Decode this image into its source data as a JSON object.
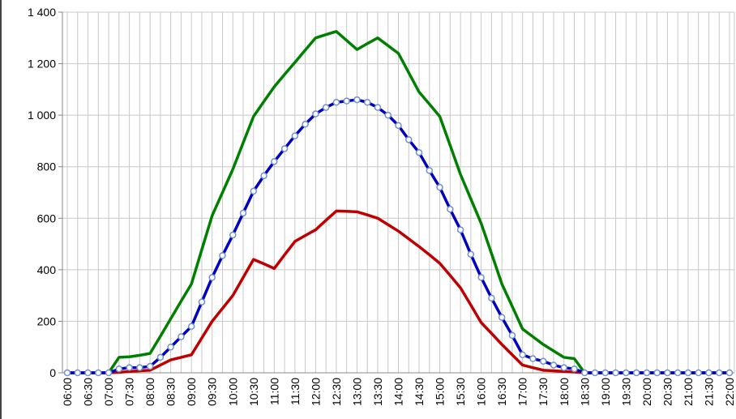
{
  "chart_data": {
    "type": "line",
    "categories": [
      "06:00",
      null,
      "06:30",
      null,
      "07:00",
      null,
      "07:30",
      null,
      "08:00",
      null,
      "08:30",
      null,
      "09:00",
      null,
      "09:30",
      null,
      "10:00",
      null,
      "10:30",
      null,
      "11:00",
      null,
      "11:30",
      null,
      "12:00",
      null,
      "12:30",
      null,
      "13:00",
      null,
      "13:30",
      null,
      "14:00",
      null,
      "14:30",
      null,
      "15:00",
      null,
      "15:30",
      null,
      "16:00",
      null,
      "16:30",
      null,
      "17:00",
      null,
      "17:30",
      null,
      "18:00",
      null,
      "18:30",
      null,
      "19:00",
      null,
      "19:30",
      null,
      "20:00",
      null,
      "20:30",
      null,
      "21:00",
      null,
      "21:30",
      null,
      "22:00"
    ],
    "series": [
      {
        "color": "#008000",
        "values": [
          0,
          0,
          0,
          0,
          0,
          60,
          62,
          68,
          75,
          142,
          210,
          278,
          345,
          478,
          610,
          700,
          790,
          893,
          995,
          1053,
          1110,
          1158,
          1205,
          1253,
          1300,
          1313,
          1325,
          1290,
          1255,
          1278,
          1300,
          1270,
          1240,
          1165,
          1090,
          1043,
          995,
          883,
          770,
          675,
          580,
          463,
          345,
          258,
          170,
          140,
          110,
          85,
          60,
          55,
          0,
          0,
          0,
          0,
          0,
          0,
          0,
          0,
          0,
          0,
          0,
          0,
          0,
          0,
          0
        ]
      },
      {
        "color": "#c00000",
        "values": [
          0,
          0,
          0,
          0,
          0,
          2,
          5,
          8,
          10,
          30,
          50,
          60,
          70,
          135,
          200,
          250,
          300,
          370,
          440,
          423,
          405,
          458,
          510,
          533,
          555,
          592,
          628,
          627,
          625,
          613,
          600,
          575,
          550,
          520,
          490,
          458,
          425,
          378,
          330,
          263,
          195,
          153,
          110,
          70,
          30,
          20,
          10,
          8,
          5,
          3,
          0,
          0,
          0,
          0,
          0,
          0,
          0,
          0,
          0,
          0,
          0,
          0,
          0,
          0,
          0
        ]
      },
      {
        "color": "#0000c0",
        "marker_color": "#6f8fd0",
        "markers": true,
        "values": [
          0,
          0,
          0,
          0,
          0,
          15,
          20,
          20,
          25,
          60,
          100,
          140,
          180,
          275,
          370,
          455,
          535,
          620,
          705,
          765,
          820,
          870,
          920,
          965,
          1005,
          1030,
          1050,
          1055,
          1060,
          1050,
          1030,
          1000,
          960,
          905,
          855,
          785,
          720,
          635,
          555,
          460,
          370,
          290,
          215,
          145,
          70,
          55,
          45,
          30,
          20,
          15,
          0,
          0,
          0,
          0,
          0,
          0,
          0,
          0,
          0,
          0,
          0,
          0,
          0,
          0,
          0
        ]
      }
    ],
    "ylim": [
      0,
      1400
    ],
    "yticks": [
      0,
      200,
      400,
      600,
      800,
      {
        "value": 1000,
        "label": "1 000"
      },
      {
        "value": 1200,
        "label": "1 200"
      },
      {
        "value": 1400,
        "label": "1 400"
      }
    ],
    "grid": true
  }
}
